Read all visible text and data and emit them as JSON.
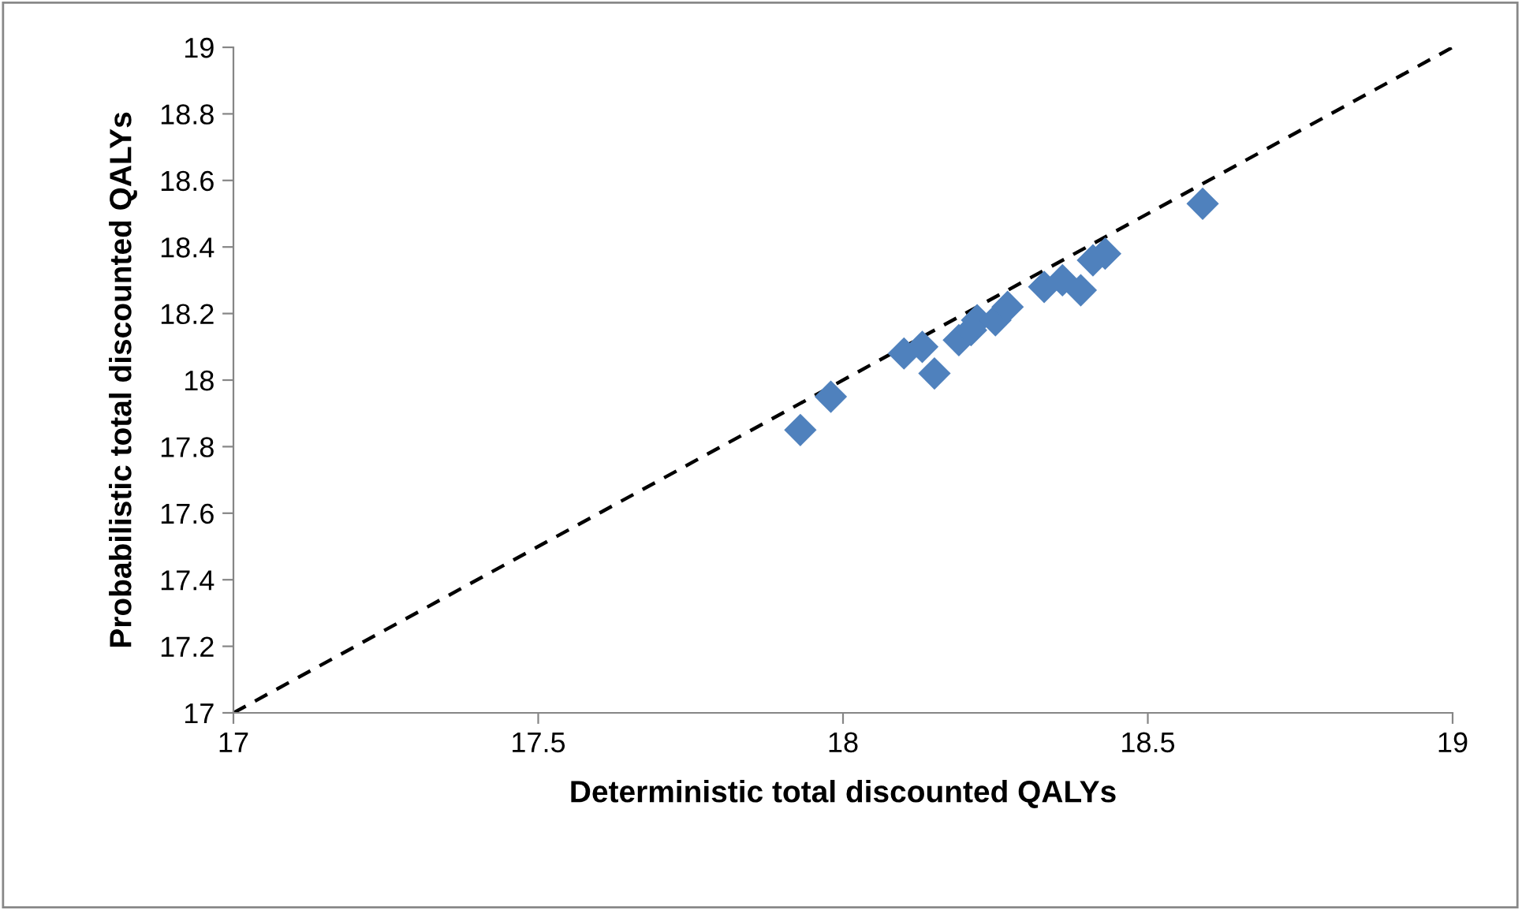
{
  "chart_data": {
    "type": "scatter",
    "xlabel": "Deterministic total discounted QALYs",
    "ylabel": "Probabilistic total discounted QALYs",
    "xlim": [
      17,
      19
    ],
    "xticks": [
      17,
      17.5,
      18,
      18.5,
      19
    ],
    "ylim": [
      17,
      19
    ],
    "yticks": [
      17,
      17.2,
      17.4,
      17.6,
      17.8,
      18,
      18.2,
      18.4,
      18.6,
      18.8,
      19
    ],
    "grid": false,
    "legend": false,
    "series": [
      {
        "color": "#4f81bd",
        "marker": "diamond",
        "x": [
          17.93,
          17.98,
          18.1,
          18.13,
          18.15,
          18.19,
          18.21,
          18.22,
          18.25,
          18.27,
          18.33,
          18.36,
          18.39,
          18.41,
          18.43,
          18.59
        ],
        "values": [
          17.85,
          17.95,
          18.08,
          18.1,
          18.02,
          18.12,
          18.15,
          18.18,
          18.18,
          18.22,
          18.28,
          18.3,
          18.27,
          18.36,
          18.38,
          18.53
        ]
      },
      {
        "type": "line",
        "color": "#000000",
        "line_style": "dashed",
        "marker": "none",
        "x": [
          17,
          19
        ],
        "values": [
          17,
          19
        ]
      }
    ]
  }
}
